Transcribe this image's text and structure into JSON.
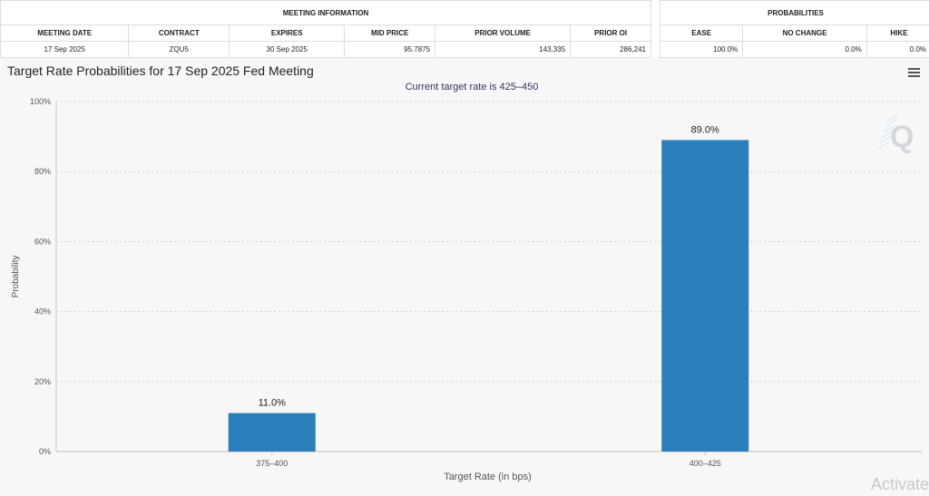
{
  "meeting_info": {
    "header": "MEETING INFORMATION",
    "columns": [
      "MEETING DATE",
      "CONTRACT",
      "EXPIRES",
      "MID PRICE",
      "PRIOR VOLUME",
      "PRIOR OI"
    ],
    "row": [
      "17 Sep 2025",
      "ZQU5",
      "30 Sep 2025",
      "95.7875",
      "143,335",
      "286,241"
    ]
  },
  "probabilities": {
    "header": "PROBABILITIES",
    "columns": [
      "EASE",
      "NO CHANGE",
      "HIKE"
    ],
    "row": [
      "100.0%",
      "0.0%",
      "0.0%"
    ]
  },
  "chart_data": {
    "type": "bar",
    "title": "Target Rate Probabilities for 17 Sep 2025 Fed Meeting",
    "subtitle": "Current target rate is 425–450",
    "xlabel": "Target Rate (in bps)",
    "ylabel": "Probability",
    "categories": [
      "375–400",
      "400–425"
    ],
    "values": [
      11.0,
      89.0
    ],
    "data_labels": [
      "11.0%",
      "89.0%"
    ],
    "ylim": [
      0,
      100
    ],
    "yticks": [
      0,
      20,
      40,
      60,
      80,
      100
    ],
    "ytick_labels": [
      "0%",
      "20%",
      "40%",
      "60%",
      "80%",
      "100%"
    ],
    "grid": true,
    "bar_color": "#2a7fba"
  },
  "watermark": {
    "logo_letter": "Q",
    "activation_text": "Activate"
  },
  "icons": {
    "menu": "hamburger-menu-icon"
  }
}
